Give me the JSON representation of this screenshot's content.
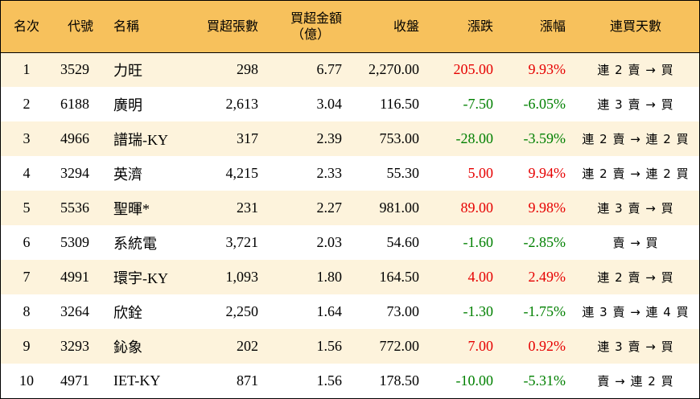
{
  "headers": {
    "rank": "名次",
    "code": "代號",
    "name": "名稱",
    "net_buy_lots": "買超張數",
    "net_buy_amount_line1": "買超金額",
    "net_buy_amount_line2": "（億）",
    "close": "收盤",
    "change": "漲跌",
    "pct_change": "漲幅",
    "streak": "連買天數"
  },
  "rows": [
    {
      "rank": "1",
      "code": "3529",
      "name": "力旺",
      "lots": "298",
      "amount": "6.77",
      "close": "2,270.00",
      "change": "205.00",
      "pct": "9.93%",
      "dir": "up",
      "streak": "連 2 賣 → 買"
    },
    {
      "rank": "2",
      "code": "6188",
      "name": "廣明",
      "lots": "2,613",
      "amount": "3.04",
      "close": "116.50",
      "change": "-7.50",
      "pct": "-6.05%",
      "dir": "down",
      "streak": "連 3 賣 → 買"
    },
    {
      "rank": "3",
      "code": "4966",
      "name": "譜瑞-KY",
      "lots": "317",
      "amount": "2.39",
      "close": "753.00",
      "change": "-28.00",
      "pct": "-3.59%",
      "dir": "down",
      "streak": "連 2 賣 → 連 2 買"
    },
    {
      "rank": "4",
      "code": "3294",
      "name": "英濟",
      "lots": "4,215",
      "amount": "2.33",
      "close": "55.30",
      "change": "5.00",
      "pct": "9.94%",
      "dir": "up",
      "streak": "連 2 賣 → 連 2 買"
    },
    {
      "rank": "5",
      "code": "5536",
      "name": "聖暉*",
      "lots": "231",
      "amount": "2.27",
      "close": "981.00",
      "change": "89.00",
      "pct": "9.98%",
      "dir": "up",
      "streak": "連 3 賣 → 買"
    },
    {
      "rank": "6",
      "code": "5309",
      "name": "系統電",
      "lots": "3,721",
      "amount": "2.03",
      "close": "54.60",
      "change": "-1.60",
      "pct": "-2.85%",
      "dir": "down",
      "streak": "賣 → 買"
    },
    {
      "rank": "7",
      "code": "4991",
      "name": "環宇-KY",
      "lots": "1,093",
      "amount": "1.80",
      "close": "164.50",
      "change": "4.00",
      "pct": "2.49%",
      "dir": "up",
      "streak": "連 2 賣 → 買"
    },
    {
      "rank": "8",
      "code": "3264",
      "name": "欣銓",
      "lots": "2,250",
      "amount": "1.64",
      "close": "73.00",
      "change": "-1.30",
      "pct": "-1.75%",
      "dir": "down",
      "streak": "連 3 賣 → 連 4 買"
    },
    {
      "rank": "9",
      "code": "3293",
      "name": "鈊象",
      "lots": "202",
      "amount": "1.56",
      "close": "772.00",
      "change": "7.00",
      "pct": "0.92%",
      "dir": "up",
      "streak": "連 3 賣 → 買"
    },
    {
      "rank": "10",
      "code": "4971",
      "name": "IET-KY",
      "lots": "871",
      "amount": "1.56",
      "close": "178.50",
      "change": "-10.00",
      "pct": "-5.31%",
      "dir": "down",
      "streak": "賣 → 連 2 買"
    }
  ],
  "colors": {
    "header_bg": "#f7c15c",
    "stripe_bg": "#fdf3dc",
    "up": "#e60000",
    "down": "#008000"
  }
}
